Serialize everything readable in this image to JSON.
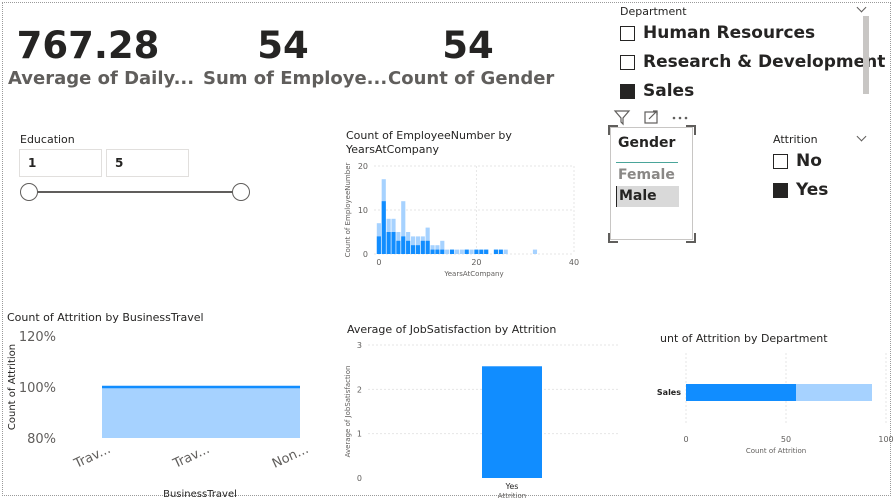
{
  "cards": [
    {
      "value": "767.28",
      "label": "Average of Daily..."
    },
    {
      "value": "54",
      "label": "Sum of Employe..."
    },
    {
      "value": "54",
      "label": "Count of Gender"
    }
  ],
  "department_slicer": {
    "title": "Department",
    "items": [
      {
        "label": "Human Resources",
        "checked": false
      },
      {
        "label": "Research & Development",
        "checked": false
      },
      {
        "label": "Sales",
        "checked": true
      }
    ]
  },
  "education_slicer": {
    "title": "Education",
    "min": "1",
    "max": "5"
  },
  "gender_slicer": {
    "title": "Gender",
    "items": [
      "Female",
      "Male"
    ],
    "selected": "Male"
  },
  "attrition_slicer": {
    "title": "Attrition",
    "items": [
      {
        "label": "No",
        "checked": false
      },
      {
        "label": "Yes",
        "checked": true
      }
    ]
  },
  "visual_header": {
    "icons": [
      "filter-icon",
      "focus-mode-icon",
      "more-options-icon"
    ]
  },
  "colors": {
    "primary": "#118dff",
    "light": "#a6d2ff",
    "grid": "#e6e6e6",
    "text": "#252423",
    "subtle": "#605e5c"
  },
  "chart_data": [
    {
      "type": "bar",
      "title": "Count of EmployeeNumber by YearsAtCompany",
      "xlabel": "YearsAtCompany",
      "ylabel": "Count of EmployeeNumber",
      "xlim": [
        -1,
        40
      ],
      "ylim": [
        0,
        20
      ],
      "xticks": [
        0,
        20,
        40
      ],
      "yticks": [
        0,
        10,
        20
      ],
      "series": [
        {
          "values": [
            [
              0,
              7
            ],
            [
              1,
              17
            ],
            [
              2,
              8
            ],
            [
              3,
              8
            ],
            [
              4,
              5
            ],
            [
              5,
              12
            ],
            [
              6,
              5
            ],
            [
              7,
              4
            ],
            [
              8,
              4
            ],
            [
              9,
              4
            ],
            [
              10,
              6
            ],
            [
              11,
              2
            ],
            [
              12,
              2
            ],
            [
              13,
              3
            ],
            [
              14,
              1
            ],
            [
              15,
              1
            ],
            [
              16,
              1
            ],
            [
              17,
              1
            ],
            [
              18,
              1
            ],
            [
              19,
              1
            ],
            [
              20,
              1
            ],
            [
              22,
              1
            ],
            [
              24,
              1
            ],
            [
              26,
              1
            ],
            [
              32,
              1
            ]
          ]
        },
        {
          "values": [
            [
              0,
              4
            ],
            [
              1,
              12
            ],
            [
              2,
              5
            ],
            [
              3,
              5
            ],
            [
              4,
              3
            ],
            [
              5,
              4
            ],
            [
              6,
              3
            ],
            [
              7,
              2
            ],
            [
              8,
              2
            ],
            [
              9,
              3
            ],
            [
              10,
              3
            ],
            [
              11,
              1
            ],
            [
              12,
              1
            ],
            [
              13,
              1
            ],
            [
              15,
              1
            ],
            [
              18,
              1
            ],
            [
              20,
              1
            ],
            [
              21,
              1
            ],
            [
              22,
              1
            ],
            [
              24,
              1
            ],
            [
              25,
              1
            ]
          ]
        }
      ]
    },
    {
      "type": "area",
      "title": "Count of Attrition by BusinessTravel",
      "xlabel": "BusinessTravel",
      "ylabel": "Count of Attrition",
      "categories": [
        "Trav...",
        "Trav...",
        "Non..."
      ],
      "values": [
        100,
        100,
        100
      ],
      "ylim": [
        80,
        120
      ],
      "yticks": [
        "80%",
        "100%",
        "120%"
      ]
    },
    {
      "type": "bar",
      "title": "Average of JobSatisfaction by Attrition",
      "xlabel": "Attrition",
      "ylabel": "Average of JobSatisfaction",
      "categories": [
        "Yes"
      ],
      "values": [
        2.52
      ],
      "ylim": [
        0,
        3
      ],
      "yticks": [
        0,
        1,
        2,
        3
      ]
    },
    {
      "type": "bar",
      "title": "unt of Attrition by Department",
      "xlabel": "Count of Attrition",
      "categories": [
        "Sales"
      ],
      "series": [
        {
          "values": [
            55
          ]
        },
        {
          "values": [
            38
          ]
        }
      ],
      "xlim": [
        0,
        100
      ],
      "xticks": [
        0,
        50,
        100
      ]
    }
  ]
}
